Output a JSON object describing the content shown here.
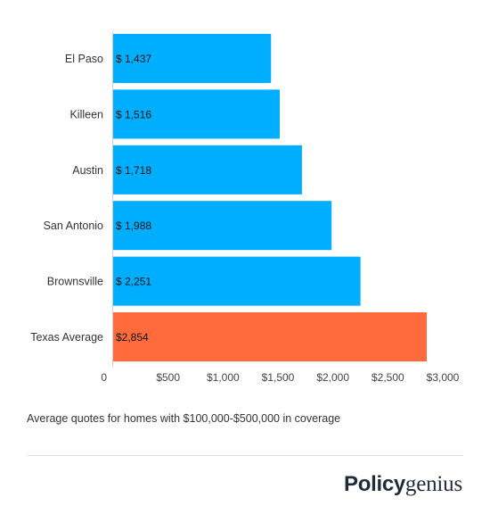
{
  "chart_data": {
    "type": "bar",
    "orientation": "horizontal",
    "categories": [
      "El Paso",
      "Killeen",
      "Austin",
      "San Antonio",
      "Brownsville",
      "Texas Average"
    ],
    "values": [
      1437,
      1516,
      1718,
      1988,
      2251,
      2854
    ],
    "value_labels": [
      "$ 1,437",
      "$ 1,516",
      "$ 1,718",
      "$ 1,988",
      "$ 2,251",
      "$2,854"
    ],
    "colors": [
      "#00aeff",
      "#00aeff",
      "#00aeff",
      "#00aeff",
      "#00aeff",
      "#ff6b3c"
    ],
    "xlim": [
      0,
      3000
    ],
    "xticks": [
      0,
      500,
      1000,
      1500,
      2000,
      2500,
      3000
    ],
    "xtick_labels": [
      "0",
      "$500",
      "$1,000",
      "$1,500",
      "$2,000",
      "$2,500",
      "$3,000"
    ],
    "grid": false,
    "legend": false
  },
  "caption": "Average quotes for homes with $100,000-$500,000 in coverage",
  "brand": {
    "part1": "Policy",
    "part2": "genius"
  }
}
